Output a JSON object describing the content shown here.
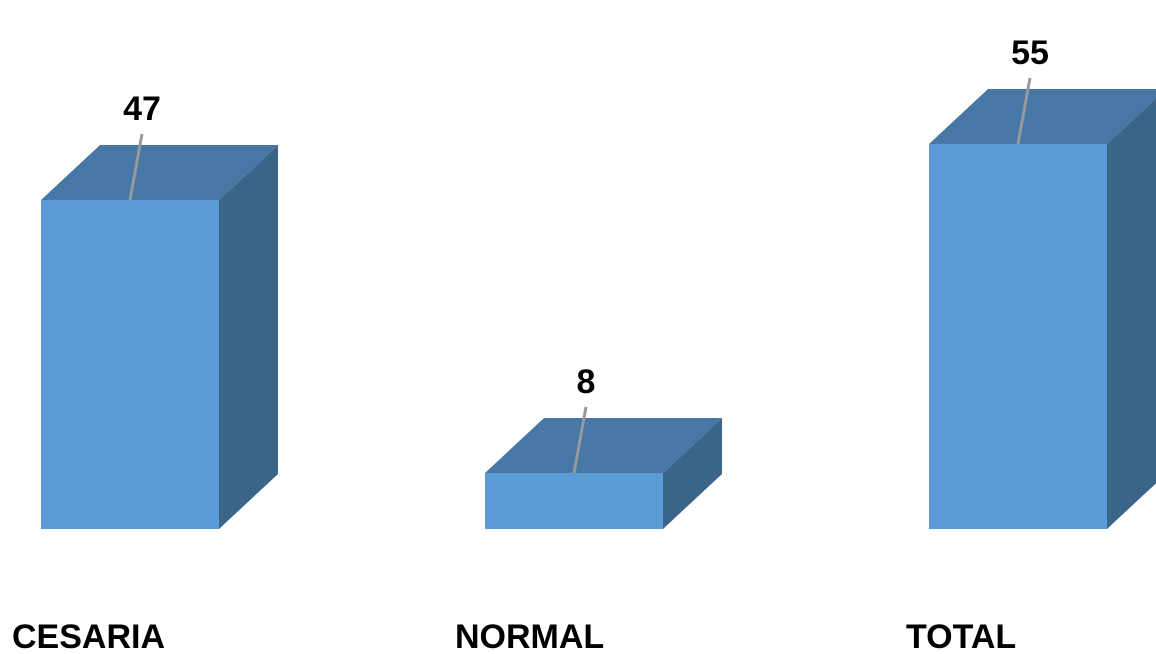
{
  "chart_data": {
    "type": "bar",
    "style": "3d-column",
    "categories": [
      "CESARIA",
      "NORMAL",
      "TOTAL"
    ],
    "values": [
      47,
      8,
      55
    ],
    "title": "",
    "xlabel": "",
    "ylabel": "",
    "ylim": [
      0,
      55
    ],
    "grid": false,
    "legend": "none",
    "data_labels": true,
    "colors": {
      "front": "#5b9bd5",
      "top": "#4677a5",
      "side": "#3a6589",
      "leader": "#999999"
    }
  }
}
